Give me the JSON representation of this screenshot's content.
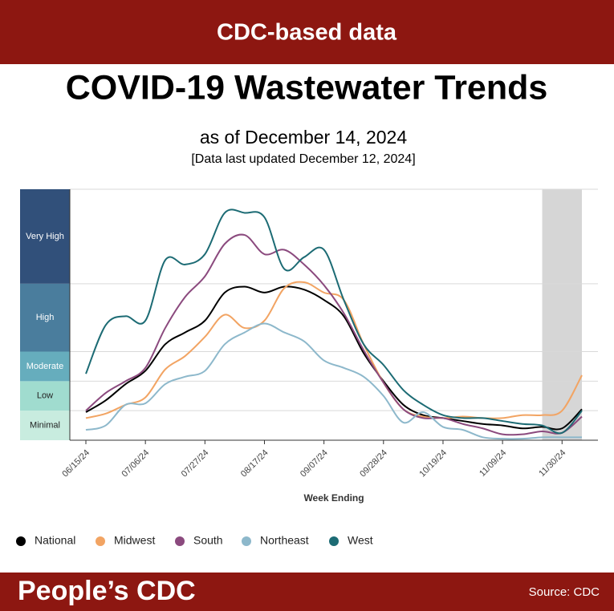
{
  "banner": "CDC-based data",
  "footer": {
    "brand": "People’s CDC",
    "source": "Source: CDC"
  },
  "chart_data": {
    "type": "line",
    "title": "COVID-19 Wastewater Trends",
    "subtitle": "as of December 14, 2024",
    "note": "[Data last updated December 12, 2024]",
    "x_label": "Week Ending",
    "categories": [
      "06/15/24",
      null,
      null,
      "07/06/24",
      null,
      null,
      "07/27/24",
      null,
      null,
      "08/17/24",
      null,
      null,
      "09/07/24",
      null,
      null,
      "09/28/24",
      null,
      null,
      "10/19/24",
      null,
      null,
      "11/09/24",
      null,
      null,
      "11/30/24",
      null
    ],
    "ylim": [
      0,
      17
    ],
    "levels": [
      {
        "label": "Minimal",
        "from": 0,
        "to": 2,
        "color": "#c8ecdf"
      },
      {
        "label": "Low",
        "from": 2,
        "to": 4,
        "color": "#a0dccf"
      },
      {
        "label": "Moderate",
        "from": 4,
        "to": 6,
        "color": "#66adbd"
      },
      {
        "label": "High",
        "from": 6,
        "to": 10.6,
        "color": "#4a7d9d"
      },
      {
        "label": "Very High",
        "from": 10.6,
        "to": 17,
        "color": "#31507a"
      }
    ],
    "series": [
      {
        "name": "National",
        "color": "#000000",
        "values": [
          1.9,
          2.7,
          3.8,
          4.7,
          6.5,
          7.3,
          8.1,
          10.0,
          10.4,
          10.0,
          10.4,
          10.2,
          9.5,
          8.4,
          5.9,
          4.0,
          2.4,
          1.7,
          1.5,
          1.3,
          1.1,
          1.0,
          0.8,
          0.9,
          0.8,
          2.1
        ]
      },
      {
        "name": "Midwest",
        "color": "#f2a463",
        "values": [
          1.5,
          1.8,
          2.4,
          2.9,
          4.8,
          5.7,
          7.0,
          8.5,
          7.6,
          8.1,
          10.3,
          10.7,
          10.0,
          9.5,
          6.5,
          3.9,
          2.1,
          1.6,
          1.5,
          1.6,
          1.5,
          1.5,
          1.7,
          1.7,
          2.0,
          4.4
        ]
      },
      {
        "name": "South",
        "color": "#8b4a7e",
        "values": [
          2.0,
          3.2,
          4.0,
          4.9,
          7.6,
          9.7,
          11.1,
          13.3,
          13.9,
          12.6,
          12.9,
          11.9,
          10.5,
          8.6,
          6.1,
          3.9,
          2.1,
          1.5,
          1.5,
          1.1,
          0.8,
          0.4,
          0.4,
          0.6,
          0.5,
          1.6
        ]
      },
      {
        "name": "Northeast",
        "color": "#8db8cb",
        "values": [
          0.7,
          1.0,
          2.4,
          2.5,
          3.8,
          4.3,
          4.7,
          6.5,
          7.3,
          7.9,
          7.3,
          6.7,
          5.4,
          4.9,
          4.3,
          3.0,
          1.2,
          1.9,
          0.9,
          0.7,
          0.2,
          0.1,
          0.1,
          0.2,
          0.2,
          0.2
        ]
      },
      {
        "name": "West",
        "color": "#1c6b74",
        "values": [
          4.5,
          7.8,
          8.4,
          8.1,
          12.2,
          11.9,
          12.6,
          15.4,
          15.4,
          15.1,
          11.6,
          12.4,
          12.9,
          9.5,
          6.5,
          5.1,
          3.4,
          2.4,
          1.7,
          1.5,
          1.5,
          1.3,
          1.1,
          1.0,
          0.5,
          2.0
        ]
      }
    ]
  }
}
